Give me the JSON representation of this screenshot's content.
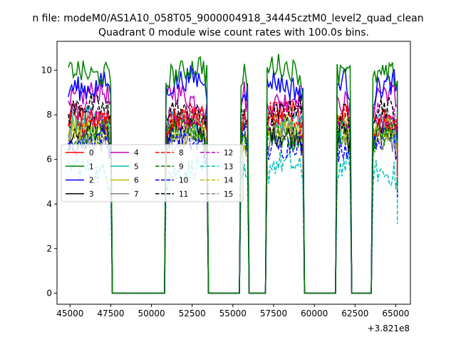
{
  "figure": {
    "suptitle": "n file: modeM0/AS1A10_058T05_9000004918_34445cztM0_level2_quad_clean"
  },
  "colors": {
    "series": [
      "#ff0000",
      "#008000",
      "#0000ff",
      "#000000",
      "#bf00bf",
      "#00bfbf",
      "#bfbf00",
      "#808080",
      "#ff0000",
      "#008000",
      "#0000ff",
      "#000000",
      "#bf00bf",
      "#00bfbf",
      "#bfbf00",
      "#808080"
    ]
  },
  "chart_data": {
    "type": "line",
    "title": "Quadrant 0 module wise count rates with 100.0s bins.",
    "xlabel": "",
    "ylabel": "",
    "x_offset_label": "+3.821e8",
    "xlim": [
      44200,
      65900
    ],
    "ylim": [
      -0.5,
      11.3
    ],
    "xticks": [
      45000,
      47500,
      50000,
      52500,
      55000,
      57500,
      60000,
      62500,
      65000
    ],
    "xtick_labels": [
      "45000",
      "47500",
      "50000",
      "52500",
      "55000",
      "57500",
      "60000",
      "62500",
      "65000"
    ],
    "yticks": [
      0,
      2,
      4,
      6,
      8,
      10
    ],
    "ytick_labels": [
      "0",
      "2",
      "4",
      "6",
      "8",
      "10"
    ],
    "grid": false,
    "legend": {
      "placement": "center-left",
      "columns": 4
    },
    "segments": [
      {
        "on": 44900,
        "off": 47500
      },
      {
        "on": 50900,
        "off": 53400
      },
      {
        "on": 55500,
        "off": 55900
      },
      {
        "on": 57100,
        "off": 59300
      },
      {
        "on": 61400,
        "off": 62200
      },
      {
        "on": 63600,
        "off": 65100
      }
    ],
    "series": [
      {
        "name": "0",
        "level": 7.9,
        "dashed": false
      },
      {
        "name": "1",
        "level": 10.0,
        "dashed": false
      },
      {
        "name": "2",
        "level": 9.4,
        "dashed": false
      },
      {
        "name": "3",
        "level": 7.3,
        "dashed": false
      },
      {
        "name": "4",
        "level": 8.8,
        "dashed": false
      },
      {
        "name": "5",
        "level": 7.6,
        "dashed": false
      },
      {
        "name": "6",
        "level": 7.2,
        "dashed": false
      },
      {
        "name": "7",
        "level": 7.0,
        "dashed": false
      },
      {
        "name": "8",
        "level": 7.8,
        "dashed": true
      },
      {
        "name": "9",
        "level": 7.1,
        "dashed": true
      },
      {
        "name": "10",
        "level": 6.8,
        "dashed": true
      },
      {
        "name": "11",
        "level": 8.2,
        "dashed": true
      },
      {
        "name": "12",
        "level": 8.0,
        "dashed": true
      },
      {
        "name": "13",
        "level": 5.6,
        "dashed": true
      },
      {
        "name": "14",
        "level": 7.5,
        "dashed": true
      },
      {
        "name": "15",
        "level": 7.7,
        "dashed": true
      }
    ]
  }
}
